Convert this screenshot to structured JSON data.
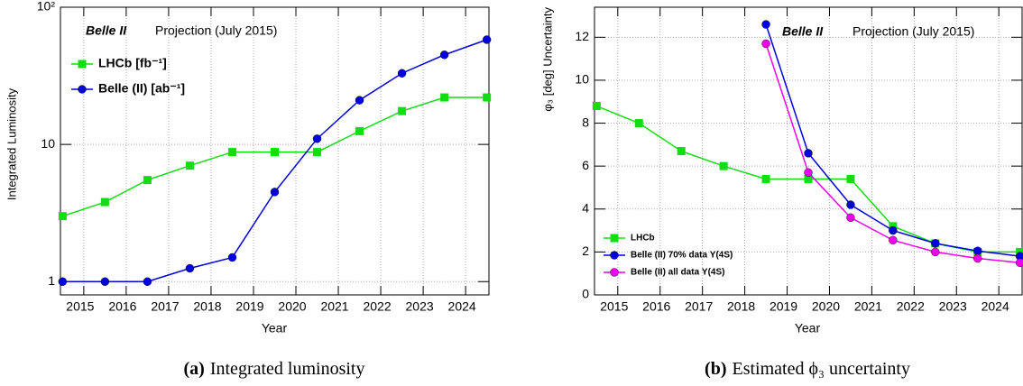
{
  "chart_data": [
    {
      "type": "line",
      "log_y": true,
      "grid": true,
      "legend": "upper left",
      "annotations": [
        "Belle II",
        "Projection (July 2015)"
      ],
      "xlabel": "Year",
      "ylabel": "Integrated Luminosity",
      "caption_label": "(a)",
      "caption": "Integrated luminosity",
      "x": [
        2014.5,
        2015.5,
        2016.5,
        2017.5,
        2018.5,
        2019.5,
        2020.5,
        2021.5,
        2022.5,
        2023.5,
        2024.5
      ],
      "xlim": [
        2014.45,
        2024.55
      ],
      "xticks": [
        2015,
        2016,
        2017,
        2018,
        2019,
        2020,
        2021,
        2022,
        2023,
        2024
      ],
      "ylim": [
        0.8,
        100
      ],
      "yticks": [
        1,
        10,
        {
          "value": 100,
          "label": "10²"
        }
      ],
      "series": [
        {
          "name": "LHCb [fb⁻¹]",
          "color": "#11dd11",
          "marker": "square",
          "values": [
            3,
            3.8,
            5.5,
            7,
            8.8,
            8.8,
            8.8,
            12.5,
            17.5,
            22,
            22
          ]
        },
        {
          "name": "Belle (II) [ab⁻¹]",
          "color": "#0000dd",
          "marker": "circle",
          "values": [
            1,
            1,
            1,
            1.25,
            1.5,
            4.5,
            11,
            21,
            33,
            45,
            58
          ]
        }
      ]
    },
    {
      "type": "line",
      "log_y": false,
      "grid": true,
      "legend": "lower left",
      "annotations": [
        "Belle II",
        "Projection (July 2015)"
      ],
      "xlabel": "Year",
      "ylabel": "φ₃ [deg] Uncertainty",
      "caption_label": "(b)",
      "caption": "Estimated ϕ₃ uncertainty",
      "x": [
        2014.5,
        2015.5,
        2016.5,
        2017.5,
        2018.5,
        2019.5,
        2020.5,
        2021.5,
        2022.5,
        2023.5,
        2024.5
      ],
      "xlim": [
        2014.45,
        2024.55
      ],
      "xticks": [
        2015,
        2016,
        2017,
        2018,
        2019,
        2020,
        2021,
        2022,
        2023,
        2024
      ],
      "ylim": [
        0,
        13.4
      ],
      "yticks": [
        0,
        2,
        4,
        6,
        8,
        10,
        12
      ],
      "series": [
        {
          "name": "LHCb",
          "color": "#11dd11",
          "marker": "square",
          "values": [
            8.8,
            8.0,
            6.7,
            6.0,
            5.4,
            5.4,
            5.4,
            3.2,
            2.4,
            2.0,
            2.0
          ]
        },
        {
          "name": "Belle (II) 70% data Υ(4S)",
          "color": "#0000dd",
          "marker": "circle",
          "values": [
            null,
            null,
            null,
            null,
            12.6,
            6.6,
            4.2,
            3.0,
            2.4,
            2.05,
            1.8
          ]
        },
        {
          "name": "Belle (II) all data Υ(4S)",
          "color": "#ee00ee",
          "marker": "circle",
          "values": [
            null,
            null,
            null,
            null,
            11.7,
            5.7,
            3.6,
            2.55,
            2.0,
            1.7,
            1.5
          ]
        }
      ]
    }
  ]
}
